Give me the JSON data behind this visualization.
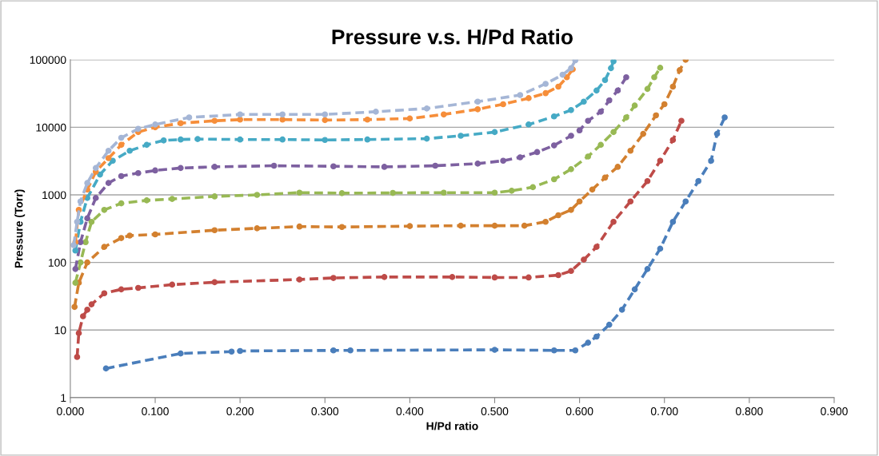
{
  "chart_data": {
    "type": "line",
    "title": "Pressure v.s. H/Pd Ratio",
    "xlabel": "H/Pd ratio",
    "ylabel": "Pressure (Torr)",
    "log": "y",
    "grid": "y",
    "marker": "circle",
    "line_style": "dashed",
    "xlim": [
      0,
      0.9
    ],
    "xticks": [
      {
        "value": 0,
        "label": "0.000"
      },
      {
        "value": 0.1,
        "label": "0.100"
      },
      {
        "value": 0.2,
        "label": "0.200"
      },
      {
        "value": 0.3,
        "label": "0.300"
      },
      {
        "value": 0.4,
        "label": "0.400"
      },
      {
        "value": 0.5,
        "label": "0.500"
      },
      {
        "value": 0.6,
        "label": "0.600"
      },
      {
        "value": 0.7,
        "label": "0.700"
      },
      {
        "value": 0.8,
        "label": "0.800"
      },
      {
        "value": 0.9,
        "label": "0.900"
      }
    ],
    "ylim": [
      1,
      100000
    ],
    "yticks": [
      1,
      10,
      100,
      1000,
      10000,
      100000
    ],
    "series": [
      {
        "color": "#4a7ebb",
        "x": [
          0.042,
          0.13,
          0.19,
          0.2,
          0.31,
          0.33,
          0.5,
          0.57,
          0.595,
          0.61,
          0.62,
          0.635,
          0.65,
          0.665,
          0.68,
          0.695,
          0.71,
          0.725,
          0.74,
          0.755,
          0.762,
          0.771
        ],
        "values": [
          2.7,
          4.5,
          4.8,
          4.9,
          5.0,
          5.0,
          5.1,
          5.0,
          5.0,
          6.5,
          8,
          12,
          20,
          40,
          80,
          160,
          400,
          800,
          1600,
          3200,
          8000,
          14000
        ]
      },
      {
        "color": "#be4b48",
        "x": [
          0.008,
          0.01,
          0.015,
          0.02,
          0.025,
          0.04,
          0.06,
          0.08,
          0.12,
          0.17,
          0.27,
          0.31,
          0.37,
          0.45,
          0.5,
          0.54,
          0.575,
          0.59,
          0.605,
          0.62,
          0.64,
          0.66,
          0.68,
          0.695,
          0.71,
          0.72
        ],
        "values": [
          4,
          9,
          16,
          20,
          24,
          35,
          40,
          42,
          47,
          51,
          56,
          59,
          61,
          61,
          60,
          60,
          65,
          75,
          110,
          170,
          400,
          800,
          1600,
          3200,
          6500,
          12500
        ]
      },
      {
        "color": "#d3802f",
        "x": [
          0.005,
          0.01,
          0.02,
          0.04,
          0.06,
          0.07,
          0.1,
          0.17,
          0.22,
          0.27,
          0.32,
          0.4,
          0.46,
          0.5,
          0.535,
          0.56,
          0.575,
          0.59,
          0.6,
          0.615,
          0.63,
          0.645,
          0.66,
          0.675,
          0.69,
          0.7,
          0.71,
          0.718,
          0.725
        ],
        "values": [
          22,
          50,
          100,
          170,
          230,
          250,
          260,
          300,
          320,
          340,
          335,
          345,
          350,
          350,
          350,
          400,
          500,
          600,
          800,
          1200,
          1800,
          2600,
          4500,
          8000,
          15000,
          22000,
          40000,
          70000,
          100000
        ]
      },
      {
        "color": "#98b954",
        "x": [
          0.006,
          0.012,
          0.018,
          0.025,
          0.04,
          0.06,
          0.09,
          0.12,
          0.17,
          0.22,
          0.27,
          0.32,
          0.38,
          0.44,
          0.5,
          0.52,
          0.545,
          0.57,
          0.59,
          0.61,
          0.625,
          0.64,
          0.655,
          0.665,
          0.68,
          0.688,
          0.695
        ],
        "values": [
          50,
          100,
          200,
          400,
          600,
          750,
          830,
          870,
          950,
          1000,
          1080,
          1060,
          1070,
          1080,
          1080,
          1150,
          1300,
          1700,
          2400,
          3700,
          5500,
          8500,
          14000,
          21000,
          37000,
          55000,
          76000
        ]
      },
      {
        "color": "#7d60a0",
        "x": [
          0.006,
          0.012,
          0.02,
          0.03,
          0.045,
          0.06,
          0.08,
          0.1,
          0.13,
          0.17,
          0.24,
          0.31,
          0.37,
          0.43,
          0.48,
          0.51,
          0.53,
          0.55,
          0.57,
          0.59,
          0.6,
          0.61,
          0.625,
          0.635,
          0.645,
          0.655
        ],
        "values": [
          80,
          200,
          450,
          900,
          1500,
          1900,
          2100,
          2300,
          2500,
          2600,
          2700,
          2650,
          2600,
          2700,
          2900,
          3200,
          3600,
          4300,
          5400,
          7500,
          9000,
          12500,
          17000,
          25000,
          35000,
          55000
        ]
      },
      {
        "color": "#46aac5",
        "x": [
          0.006,
          0.012,
          0.02,
          0.035,
          0.05,
          0.07,
          0.09,
          0.11,
          0.13,
          0.15,
          0.2,
          0.25,
          0.3,
          0.35,
          0.42,
          0.46,
          0.5,
          0.54,
          0.57,
          0.59,
          0.605,
          0.62,
          0.63,
          0.637,
          0.64
        ],
        "values": [
          150,
          400,
          900,
          2000,
          3200,
          4500,
          5500,
          6400,
          6600,
          6700,
          6600,
          6600,
          6500,
          6600,
          6800,
          7500,
          8500,
          11000,
          14500,
          18000,
          24000,
          35000,
          50000,
          75000,
          95000
        ]
      },
      {
        "color": "#f68e3a",
        "x": [
          0.006,
          0.01,
          0.02,
          0.03,
          0.045,
          0.06,
          0.08,
          0.1,
          0.13,
          0.17,
          0.2,
          0.25,
          0.3,
          0.35,
          0.4,
          0.44,
          0.48,
          0.51,
          0.54,
          0.56,
          0.575,
          0.585,
          0.592
        ],
        "values": [
          200,
          600,
          1200,
          2200,
          3500,
          5500,
          8500,
          10000,
          11500,
          12500,
          13000,
          13000,
          12800,
          13000,
          13500,
          15500,
          18500,
          22000,
          27000,
          32000,
          40000,
          55000,
          72000
        ]
      },
      {
        "color": "#a5b6d6",
        "x": [
          0.004,
          0.008,
          0.012,
          0.02,
          0.03,
          0.045,
          0.06,
          0.08,
          0.1,
          0.14,
          0.2,
          0.25,
          0.3,
          0.36,
          0.42,
          0.48,
          0.53,
          0.56,
          0.58,
          0.59,
          0.595
        ],
        "values": [
          180,
          400,
          800,
          1500,
          2500,
          4500,
          7000,
          9500,
          11000,
          14000,
          15500,
          15500,
          15500,
          17000,
          19000,
          24000,
          30000,
          44000,
          60000,
          75000,
          98000
        ]
      }
    ]
  }
}
